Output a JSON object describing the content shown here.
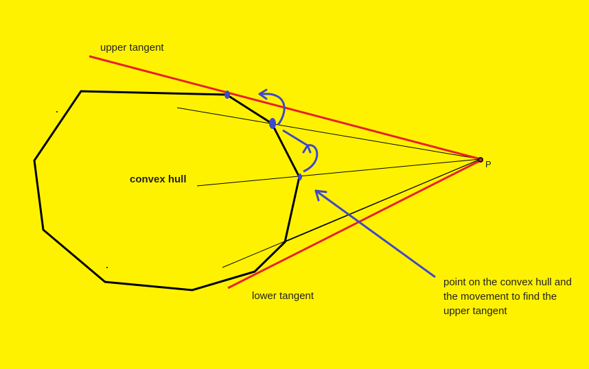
{
  "labels": {
    "upper_tangent": "upper tangent",
    "lower_tangent": "lower tangent",
    "convex_hull": "convex hull",
    "point_p": "P",
    "annotation": "point on the convex hull and\nthe movement to find the\nupper tangent"
  },
  "colors": {
    "background": "#FFF200",
    "hull": "#000000",
    "tangent": "#E8202A",
    "movement": "#3F48CC",
    "guide": "#000000",
    "text": "#222222"
  }
}
